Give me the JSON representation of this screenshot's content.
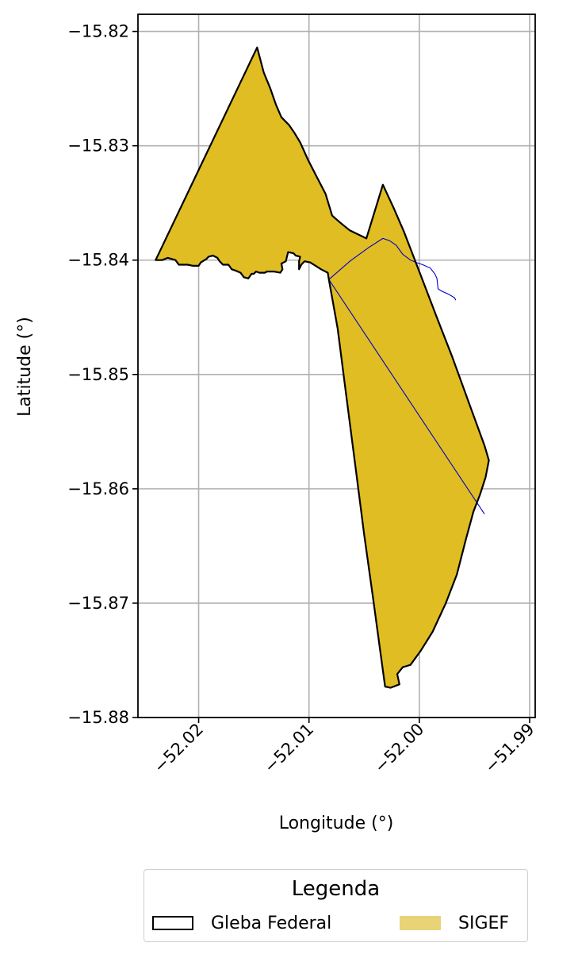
{
  "chart_data": {
    "type": "map",
    "xlabel": "Longitude (°)",
    "ylabel": "Latitude (°)",
    "xlim": [
      -52.0255,
      -51.9895
    ],
    "ylim": [
      -15.88,
      -15.8185
    ],
    "grid": true,
    "x_ticks": [
      {
        "value": -52.02,
        "label": "−52.02"
      },
      {
        "value": -52.01,
        "label": "−52.01"
      },
      {
        "value": -52.0,
        "label": "−52.00"
      },
      {
        "value": -51.99,
        "label": "−51.99"
      }
    ],
    "y_ticks": [
      {
        "value": -15.82,
        "label": "−15.82"
      },
      {
        "value": -15.83,
        "label": "−15.83"
      },
      {
        "value": -15.84,
        "label": "−15.84"
      },
      {
        "value": -15.85,
        "label": "−15.85"
      },
      {
        "value": -15.86,
        "label": "−15.86"
      },
      {
        "value": -15.87,
        "label": "−15.87"
      },
      {
        "value": -15.88,
        "label": "−15.88"
      }
    ],
    "layers": {
      "gleba_federal": {
        "edge_color": "#000000",
        "polygon": [
          [
            -52.0239,
            -15.84
          ],
          [
            -52.0147,
            -15.8214
          ],
          [
            -52.0141,
            -15.8236
          ],
          [
            -52.0135,
            -15.825
          ],
          [
            -52.013,
            -15.8264
          ],
          [
            -52.0125,
            -15.8275
          ],
          [
            -52.0118,
            -15.8282
          ],
          [
            -52.0113,
            -15.8289
          ],
          [
            -52.0108,
            -15.8297
          ],
          [
            -52.0101,
            -15.8312
          ],
          [
            -52.0093,
            -15.8327
          ],
          [
            -52.0085,
            -15.8342
          ],
          [
            -52.0079,
            -15.8361
          ],
          [
            -52.0072,
            -15.8367
          ],
          [
            -52.0063,
            -15.8374
          ],
          [
            -52.0048,
            -15.8381
          ],
          [
            -52.0033,
            -15.8334
          ],
          [
            -52.0023,
            -15.8355
          ],
          [
            -52.0014,
            -15.8375
          ],
          [
            -52.0006,
            -15.8395
          ],
          [
            -51.9996,
            -15.842
          ],
          [
            -51.9985,
            -15.8448
          ],
          [
            -51.997,
            -15.8485
          ],
          [
            -51.9955,
            -15.8525
          ],
          [
            -51.9941,
            -15.8562
          ],
          [
            -51.9937,
            -15.8575
          ],
          [
            -51.994,
            -15.859
          ],
          [
            -51.9945,
            -15.8605
          ],
          [
            -51.9951,
            -15.862
          ],
          [
            -51.9958,
            -15.8645
          ],
          [
            -51.9966,
            -15.8675
          ],
          [
            -51.9976,
            -15.87
          ],
          [
            -51.9988,
            -15.8725
          ],
          [
            -51.9999,
            -15.8742
          ],
          [
            -52.0008,
            -15.8754
          ],
          [
            -52.0015,
            -15.8756
          ],
          [
            -52.002,
            -15.8762
          ],
          [
            -52.0018,
            -15.8771
          ],
          [
            -52.0026,
            -15.8774
          ],
          [
            -52.0031,
            -15.8773
          ],
          [
            -52.0035,
            -15.8745
          ],
          [
            -52.0042,
            -15.8695
          ],
          [
            -52.005,
            -15.864
          ],
          [
            -52.0058,
            -15.858
          ],
          [
            -52.0066,
            -15.852
          ],
          [
            -52.0074,
            -15.846
          ],
          [
            -52.0082,
            -15.8417
          ],
          [
            -52.0083,
            -15.8411
          ],
          [
            -52.0089,
            -15.8408
          ],
          [
            -52.0094,
            -15.8405
          ],
          [
            -52.0099,
            -15.8402
          ],
          [
            -52.0104,
            -15.8401
          ],
          [
            -52.0107,
            -15.8404
          ],
          [
            -52.0109,
            -15.8408
          ],
          [
            -52.0109,
            -15.8401
          ],
          [
            -52.0108,
            -15.8397
          ],
          [
            -52.0112,
            -15.8396
          ],
          [
            -52.0114,
            -15.8394
          ],
          [
            -52.0119,
            -15.8393
          ],
          [
            -52.0121,
            -15.8401
          ],
          [
            -52.0125,
            -15.8403
          ],
          [
            -52.0124,
            -15.8408
          ],
          [
            -52.0126,
            -15.8411
          ],
          [
            -52.0132,
            -15.841
          ],
          [
            -52.0138,
            -15.841
          ],
          [
            -52.014,
            -15.8411
          ],
          [
            -52.0145,
            -15.8411
          ],
          [
            -52.0148,
            -15.841
          ],
          [
            -52.015,
            -15.8412
          ],
          [
            -52.0152,
            -15.8412
          ],
          [
            -52.0155,
            -15.8416
          ],
          [
            -52.0159,
            -15.8415
          ],
          [
            -52.0162,
            -15.8411
          ],
          [
            -52.0167,
            -15.8409
          ],
          [
            -52.017,
            -15.8408
          ],
          [
            -52.0173,
            -15.8404
          ],
          [
            -52.0178,
            -15.8404
          ],
          [
            -52.0181,
            -15.8401
          ],
          [
            -52.0183,
            -15.8398
          ],
          [
            -52.0187,
            -15.8396
          ],
          [
            -52.0191,
            -15.8397
          ],
          [
            -52.0193,
            -15.8399
          ],
          [
            -52.0198,
            -15.8402
          ],
          [
            -52.02,
            -15.8405
          ],
          [
            -52.0201,
            -15.8405
          ],
          [
            -52.0205,
            -15.8405
          ],
          [
            -52.021,
            -15.8404
          ],
          [
            -52.0215,
            -15.8404
          ],
          [
            -52.0218,
            -15.8404
          ],
          [
            -52.0221,
            -15.84
          ],
          [
            -52.0228,
            -15.8398
          ],
          [
            -52.0233,
            -15.84
          ],
          [
            -52.0239,
            -15.84
          ]
        ]
      },
      "sigef": {
        "fill_color": "#e0bd22",
        "outline_color": "#0000cc",
        "internal_lines": [
          [
            [
              -52.0082,
              -15.8417
            ],
            [
              -52.0063,
              -15.8401
            ],
            [
              -52.0046,
              -15.8389
            ],
            [
              -52.0033,
              -15.8381
            ],
            [
              -52.0027,
              -15.8383
            ],
            [
              -52.0021,
              -15.8387
            ],
            [
              -52.0015,
              -15.8395
            ],
            [
              -52.0008,
              -15.84
            ],
            [
              -52.0003,
              -15.8402
            ],
            [
              -51.9997,
              -15.8404
            ],
            [
              -51.999,
              -15.8407
            ],
            [
              -51.9986,
              -15.8412
            ],
            [
              -51.9984,
              -15.8416
            ],
            [
              -51.9983,
              -15.8425
            ],
            [
              -51.998,
              -15.8427
            ],
            [
              -51.9973,
              -15.843
            ],
            [
              -51.9968,
              -15.8433
            ],
            [
              -51.9967,
              -15.8435
            ]
          ],
          [
            [
              -52.0082,
              -15.8417
            ],
            [
              -51.9941,
              -15.8622
            ]
          ]
        ]
      }
    },
    "legend": {
      "title": "Legenda",
      "placement": "below",
      "entries": [
        {
          "label": "Gleba Federal",
          "style": "outline",
          "color": "#000000"
        },
        {
          "label": "SIGEF",
          "style": "fill",
          "color": "#e8d476"
        }
      ]
    }
  }
}
